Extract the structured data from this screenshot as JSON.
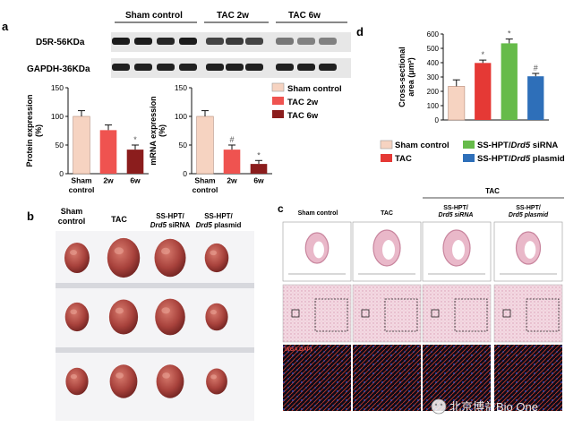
{
  "panel_letters": {
    "a": "a",
    "b": "b",
    "c": "c",
    "d": "d"
  },
  "blot": {
    "groups": [
      "Sham control",
      "TAC 2w",
      "TAC 6w"
    ],
    "bands": [
      "D5R-56KDa",
      "GAPDH-36KDa"
    ]
  },
  "legend_a": [
    "Sham control",
    "TAC 2w",
    "TAC 6w"
  ],
  "legend_d": [
    "Sham control",
    "TAC",
    "SS-HPT/",
    "Drd5",
    " siRNA",
    "SS-HPT/",
    "Drd5",
    " plasmid"
  ],
  "panel_b": {
    "labels": [
      "Sham\ncontrol",
      "TAC",
      "SS-HPT/\nDrd5 siRNA",
      "SS-HPT/\nDrd5 plasmid"
    ],
    "l1a": "Sham",
    "l1b": "control",
    "l2": "TAC",
    "l3a": "SS-HPT/",
    "l3b": "Drd5",
    " l3c": "siRNA",
    "l4a": "SS-HPT/",
    "l4b": "Drd5",
    "l4c": "plasmid"
  },
  "panel_c": {
    "tac_group": "TAC",
    "cols": [
      "Sham control",
      "TAC",
      "SS-HPT/",
      "SS-HPT/"
    ],
    "col3b": "Drd5 siRNA",
    "col4b": "Drd5 plasmid",
    "stain": "WGA DAPI"
  },
  "watermark": "北京博益Bio One",
  "colors": {
    "sham": "#f6d3c1",
    "tac2": "#ef5350",
    "tac6": "#8b1d1d",
    "tac": "#e53935",
    "sirna": "#66bb4a",
    "plasmid": "#2e6fb9"
  },
  "chart_data": [
    {
      "type": "bar",
      "ylabel": "Protein expression (%)",
      "categories": [
        "Sham control",
        "2w",
        "6w"
      ],
      "values": [
        100,
        76,
        42
      ],
      "errors": [
        10,
        9,
        8
      ],
      "ylim": [
        0,
        150
      ],
      "ticks": [
        0,
        50,
        100,
        150
      ],
      "sig": [
        "",
        "",
        "*"
      ]
    },
    {
      "type": "bar",
      "ylabel": "mRNA expression (%)",
      "categories": [
        "Sham control",
        "2w",
        "6w"
      ],
      "values": [
        100,
        42,
        17
      ],
      "errors": [
        10,
        8,
        6
      ],
      "ylim": [
        0,
        150
      ],
      "ticks": [
        0,
        50,
        100,
        150
      ],
      "sig": [
        "",
        "#",
        "*"
      ]
    },
    {
      "type": "bar",
      "ylabel": "Cross-sectional area (μm²)",
      "categories": [
        "Sham control",
        "TAC",
        "SS-HPT/Drd5 siRNA",
        "SS-HPT/Drd5 plasmid"
      ],
      "values": [
        235,
        398,
        535,
        305
      ],
      "errors": [
        45,
        20,
        30,
        20
      ],
      "ylim": [
        0,
        600
      ],
      "ticks": [
        0,
        100,
        200,
        300,
        400,
        500,
        600
      ],
      "sig": [
        "",
        "*",
        "*",
        "#"
      ]
    }
  ]
}
